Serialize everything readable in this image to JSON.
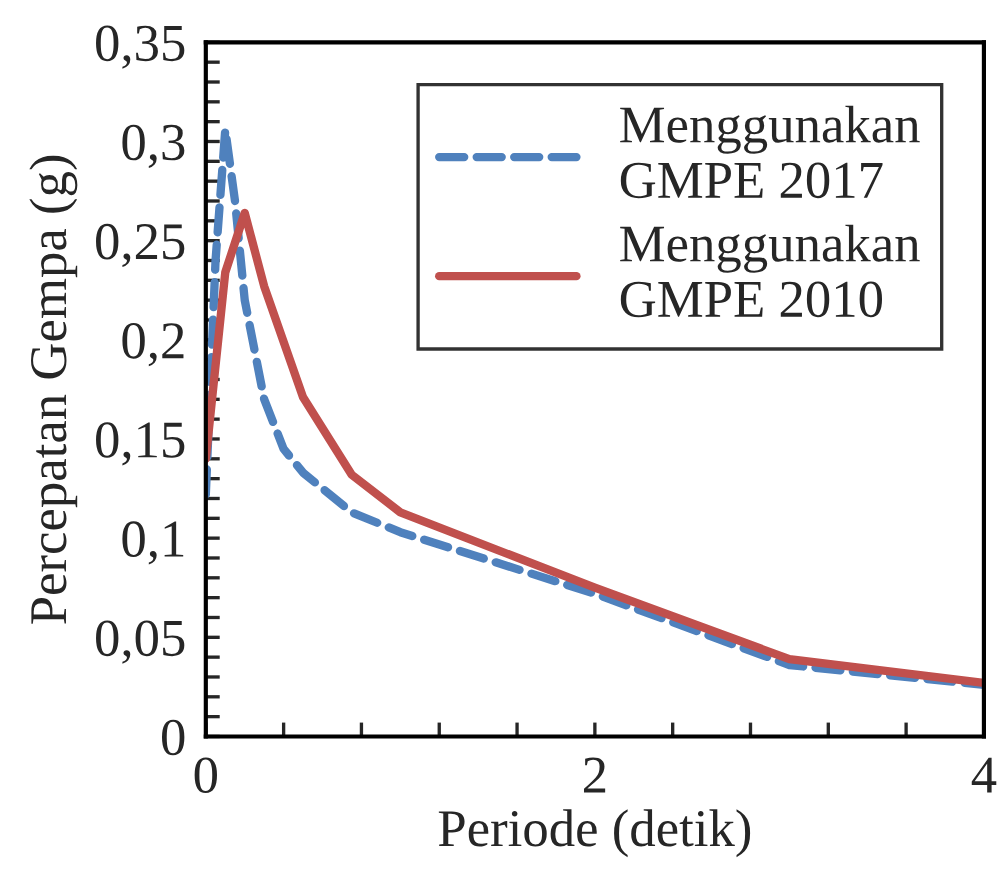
{
  "chart_data": {
    "type": "line",
    "xlabel": "Periode (detik)",
    "ylabel": "Percepatan Gempa (g)",
    "xlim": [
      0,
      4
    ],
    "ylim": [
      0,
      0.35
    ],
    "xticks": [
      0,
      {
        "value": 0.4,
        "label": null
      },
      {
        "value": 0.8,
        "label": null
      },
      {
        "value": 1.2,
        "label": null
      },
      {
        "value": 1.6,
        "label": null
      },
      2,
      {
        "value": 2.4,
        "label": null
      },
      {
        "value": 2.8,
        "label": null
      },
      {
        "value": 3.2,
        "label": null
      },
      {
        "value": 3.6,
        "label": null
      },
      4
    ],
    "yticks": [
      0,
      {
        "value": 0.01,
        "label": null
      },
      {
        "value": 0.02,
        "label": null
      },
      {
        "value": 0.03,
        "label": null
      },
      {
        "value": 0.04,
        "label": null
      },
      {
        "value": 0.05,
        "label": "0,05"
      },
      {
        "value": 0.06,
        "label": null
      },
      {
        "value": 0.07,
        "label": null
      },
      {
        "value": 0.08,
        "label": null
      },
      {
        "value": 0.09,
        "label": null
      },
      {
        "value": 0.1,
        "label": "0,1"
      },
      {
        "value": 0.11,
        "label": null
      },
      {
        "value": 0.12,
        "label": null
      },
      {
        "value": 0.13,
        "label": null
      },
      {
        "value": 0.14,
        "label": null
      },
      {
        "value": 0.15,
        "label": "0,15"
      },
      {
        "value": 0.16,
        "label": null
      },
      {
        "value": 0.17,
        "label": null
      },
      {
        "value": 0.18,
        "label": null
      },
      {
        "value": 0.19,
        "label": null
      },
      {
        "value": 0.2,
        "label": "0,2"
      },
      {
        "value": 0.21,
        "label": null
      },
      {
        "value": 0.22,
        "label": null
      },
      {
        "value": 0.23,
        "label": null
      },
      {
        "value": 0.24,
        "label": null
      },
      {
        "value": 0.25,
        "label": "0,25"
      },
      {
        "value": 0.26,
        "label": null
      },
      {
        "value": 0.27,
        "label": null
      },
      {
        "value": 0.28,
        "label": null
      },
      {
        "value": 0.29,
        "label": null
      },
      {
        "value": 0.3,
        "label": "0,3"
      },
      {
        "value": 0.31,
        "label": null
      },
      {
        "value": 0.32,
        "label": null
      },
      {
        "value": 0.33,
        "label": null
      },
      {
        "value": 0.34,
        "label": null
      },
      {
        "value": 0.35,
        "label": "0,35"
      }
    ],
    "grid": false,
    "legend": "top right",
    "marker": "none",
    "series": [
      {
        "name": "Menggunakan\nGMPE 2017",
        "color": "#4f81bd",
        "line_style": "dashed",
        "x": [
          0,
          0.05,
          0.1,
          0.15,
          0.2,
          0.3,
          0.4,
          0.5,
          0.75,
          1,
          2,
          3,
          4
        ],
        "values": [
          0.122,
          0.24,
          0.306,
          0.27,
          0.22,
          0.17,
          0.145,
          0.133,
          0.113,
          0.103,
          0.072,
          0.036,
          0.026
        ]
      },
      {
        "name": "Menggunakan\nGMPE 2010",
        "color": "#c0504d",
        "line_style": "solid",
        "x": [
          0,
          0.1,
          0.2,
          0.3,
          0.5,
          0.75,
          1,
          2,
          3,
          4
        ],
        "values": [
          0.14,
          0.234,
          0.264,
          0.227,
          0.171,
          0.132,
          0.113,
          0.075,
          0.039,
          0.027
        ]
      }
    ]
  }
}
